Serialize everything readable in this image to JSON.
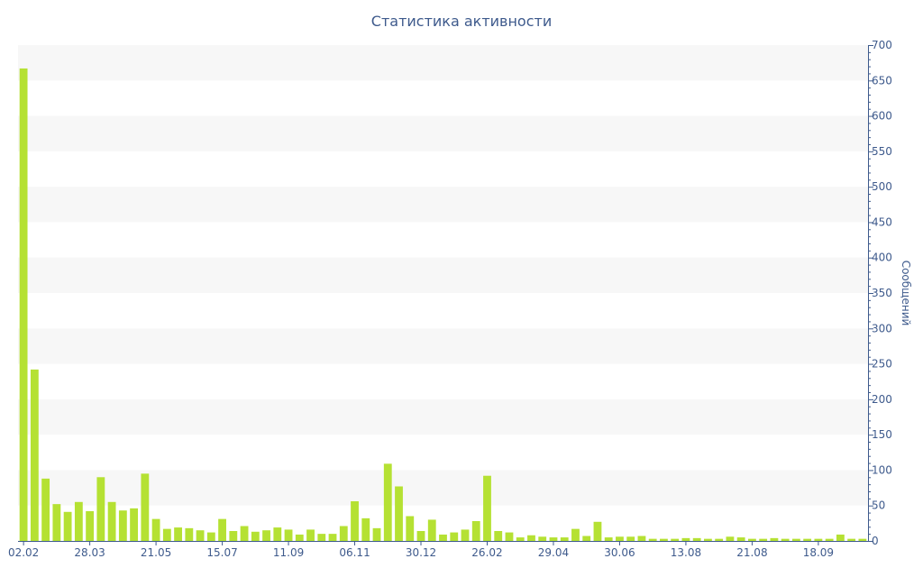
{
  "chart_data": {
    "type": "bar",
    "title": "Статистика активности",
    "ylabel": "Сообщений",
    "xlabel": "",
    "ylim": [
      0,
      700
    ],
    "y_ticks": [
      0,
      50,
      100,
      150,
      200,
      250,
      300,
      350,
      400,
      450,
      500,
      550,
      600,
      650,
      700
    ],
    "y_axis_side": "right",
    "grid": "alternating horizontal bands",
    "x_tick_labels": [
      {
        "index": 0,
        "label": "02.02"
      },
      {
        "index": 6,
        "label": "28.03"
      },
      {
        "index": 12,
        "label": "21.05"
      },
      {
        "index": 18,
        "label": "15.07"
      },
      {
        "index": 24,
        "label": "11.09"
      },
      {
        "index": 30,
        "label": "06.11"
      },
      {
        "index": 36,
        "label": "30.12"
      },
      {
        "index": 42,
        "label": "26.02"
      },
      {
        "index": 48,
        "label": "29.04"
      },
      {
        "index": 54,
        "label": "30.06"
      },
      {
        "index": 60,
        "label": "13.08"
      },
      {
        "index": 66,
        "label": "21.08"
      },
      {
        "index": 72,
        "label": "18.09"
      }
    ],
    "values": [
      667,
      242,
      88,
      52,
      41,
      55,
      42,
      90,
      55,
      43,
      46,
      95,
      31,
      17,
      19,
      18,
      15,
      12,
      31,
      14,
      21,
      13,
      15,
      19,
      16,
      9,
      16,
      10,
      10,
      21,
      56,
      32,
      18,
      109,
      77,
      35,
      14,
      30,
      9,
      12,
      16,
      28,
      92,
      14,
      12,
      5,
      8,
      6,
      5,
      5,
      17,
      7,
      27,
      5,
      6,
      6,
      7,
      3,
      3,
      3,
      4,
      4,
      3,
      3,
      6,
      5,
      3,
      3,
      4,
      3,
      3,
      3,
      3,
      3,
      9,
      3,
      3
    ]
  },
  "colors": {
    "bar": "#b5e133",
    "band": "#f7f7f7",
    "axis": "#3e5a8c"
  }
}
